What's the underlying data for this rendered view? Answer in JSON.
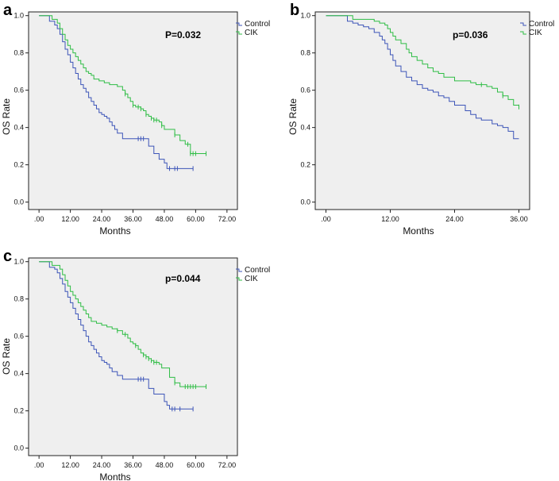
{
  "colors": {
    "control": "#3d55b8",
    "cik": "#2fbd45"
  },
  "chart_data": [
    {
      "type": "line",
      "panel": "a",
      "p_value": "P=0.032",
      "xlabel": "Months",
      "ylabel": "OS Rate",
      "xlim": [
        -4,
        76
      ],
      "ylim": [
        -0.04,
        1.02
      ],
      "xticks": [
        0,
        12,
        24,
        36,
        48,
        60,
        72
      ],
      "xtick_labels": [
        ".00",
        "12.00",
        "24.00",
        "36.00",
        "48.00",
        "60.00",
        "72.00"
      ],
      "yticks": [
        0,
        0.2,
        0.4,
        0.6,
        0.8,
        1.0
      ],
      "ytick_labels": [
        "0.0",
        "0.2",
        "0.4",
        "0.6",
        "0.8",
        "1.0"
      ],
      "legend": [
        "Control",
        "CIK"
      ],
      "series": [
        {
          "name": "Control",
          "x": [
            0,
            4,
            6,
            7,
            8,
            9,
            10,
            11,
            12,
            13,
            14,
            15,
            16,
            17,
            18,
            19,
            20,
            21,
            22,
            23,
            24,
            25,
            26,
            27,
            28,
            29,
            30,
            32,
            33,
            40,
            42,
            44,
            46,
            48,
            49,
            59
          ],
          "y": [
            1.0,
            0.97,
            0.95,
            0.93,
            0.9,
            0.86,
            0.82,
            0.79,
            0.75,
            0.72,
            0.69,
            0.66,
            0.63,
            0.61,
            0.59,
            0.56,
            0.54,
            0.52,
            0.5,
            0.48,
            0.47,
            0.46,
            0.45,
            0.43,
            0.41,
            0.39,
            0.37,
            0.34,
            0.34,
            0.34,
            0.3,
            0.26,
            0.23,
            0.21,
            0.18,
            0.18
          ],
          "censored_x": [
            38,
            39,
            40,
            50,
            52,
            53,
            59
          ]
        },
        {
          "name": "CIK",
          "x": [
            0,
            5,
            7,
            8,
            9,
            10,
            11,
            12,
            13,
            14,
            15,
            16,
            17,
            18,
            19,
            20,
            21,
            23,
            25,
            27,
            30,
            32,
            33,
            34,
            35,
            36,
            37,
            38,
            39,
            40,
            41,
            42,
            43,
            44,
            46,
            47,
            48,
            50,
            52,
            54,
            56,
            58,
            64
          ],
          "y": [
            1.0,
            0.98,
            0.96,
            0.93,
            0.9,
            0.87,
            0.84,
            0.82,
            0.8,
            0.78,
            0.76,
            0.74,
            0.72,
            0.7,
            0.69,
            0.68,
            0.66,
            0.65,
            0.64,
            0.63,
            0.62,
            0.6,
            0.58,
            0.56,
            0.54,
            0.52,
            0.51,
            0.51,
            0.5,
            0.49,
            0.47,
            0.46,
            0.45,
            0.44,
            0.43,
            0.41,
            0.39,
            0.39,
            0.36,
            0.33,
            0.31,
            0.26,
            0.26
          ],
          "censored_x": [
            33,
            36,
            38,
            39,
            41,
            43,
            44,
            45,
            47,
            52,
            57,
            58,
            59,
            60,
            64
          ]
        }
      ]
    },
    {
      "type": "line",
      "panel": "b",
      "p_value": "p=0.036",
      "xlabel": "Months",
      "ylabel": "OS Rate",
      "xlim": [
        -2,
        38
      ],
      "ylim": [
        -0.04,
        1.02
      ],
      "xticks": [
        0,
        12,
        24,
        36
      ],
      "xtick_labels": [
        ".00",
        "12.00",
        "24.00",
        "36.00"
      ],
      "yticks": [
        0,
        0.2,
        0.4,
        0.6,
        0.8,
        1.0
      ],
      "ytick_labels": [
        "0.0",
        "0.2",
        "0.4",
        "0.6",
        "0.8",
        "1.0"
      ],
      "legend": [
        "Control",
        "CIK"
      ],
      "series": [
        {
          "name": "Control",
          "x": [
            0,
            4,
            5,
            6,
            7,
            8,
            9,
            10,
            10.5,
            11,
            11.5,
            12,
            12.5,
            13,
            14,
            15,
            16,
            17,
            18,
            19,
            20,
            21,
            22,
            23,
            24,
            26,
            27,
            28,
            29,
            31,
            32,
            33,
            34,
            35,
            36
          ],
          "y": [
            1.0,
            0.97,
            0.96,
            0.95,
            0.94,
            0.93,
            0.91,
            0.89,
            0.87,
            0.85,
            0.82,
            0.79,
            0.76,
            0.73,
            0.7,
            0.67,
            0.65,
            0.63,
            0.61,
            0.6,
            0.59,
            0.57,
            0.56,
            0.54,
            0.52,
            0.49,
            0.47,
            0.45,
            0.44,
            0.42,
            0.41,
            0.4,
            0.38,
            0.34,
            0.34
          ]
        },
        {
          "name": "CIK",
          "x": [
            0,
            5,
            9,
            10,
            11,
            11.5,
            12,
            12.5,
            13,
            14,
            15,
            15.5,
            16,
            17,
            18,
            19,
            20,
            21,
            22,
            24,
            27,
            28,
            30,
            31,
            32,
            33,
            34,
            35,
            36
          ],
          "y": [
            1.0,
            0.98,
            0.97,
            0.96,
            0.95,
            0.93,
            0.91,
            0.89,
            0.87,
            0.85,
            0.82,
            0.8,
            0.78,
            0.76,
            0.74,
            0.72,
            0.7,
            0.69,
            0.67,
            0.65,
            0.64,
            0.63,
            0.62,
            0.61,
            0.59,
            0.57,
            0.55,
            0.52,
            0.51
          ],
          "censored_x": [
            29,
            33,
            36
          ]
        }
      ]
    },
    {
      "type": "line",
      "panel": "c",
      "p_value": "p=0.044",
      "xlabel": "Months",
      "ylabel": "OS Rate",
      "xlim": [
        -4,
        76
      ],
      "ylim": [
        -0.04,
        1.02
      ],
      "xticks": [
        0,
        12,
        24,
        36,
        48,
        60,
        72
      ],
      "xtick_labels": [
        ".00",
        "12.00",
        "24.00",
        "36.00",
        "48.00",
        "60.00",
        "72.00"
      ],
      "yticks": [
        0,
        0.2,
        0.4,
        0.6,
        0.8,
        1.0
      ],
      "ytick_labels": [
        "0.0",
        "0.2",
        "0.4",
        "0.6",
        "0.8",
        "1.0"
      ],
      "legend": [
        "Control",
        "CIK"
      ],
      "series": [
        {
          "name": "Control",
          "x": [
            0,
            4,
            6,
            7,
            8,
            9,
            10,
            11,
            12,
            13,
            14,
            15,
            16,
            17,
            18,
            19,
            20,
            21,
            22,
            23,
            24,
            25,
            26,
            27,
            28,
            30,
            32,
            38,
            40,
            42,
            44,
            48,
            49,
            50,
            59
          ],
          "y": [
            1.0,
            0.97,
            0.96,
            0.94,
            0.91,
            0.88,
            0.84,
            0.81,
            0.78,
            0.75,
            0.72,
            0.69,
            0.66,
            0.63,
            0.6,
            0.57,
            0.55,
            0.53,
            0.51,
            0.49,
            0.47,
            0.46,
            0.45,
            0.43,
            0.41,
            0.39,
            0.37,
            0.37,
            0.37,
            0.32,
            0.29,
            0.25,
            0.23,
            0.21,
            0.21
          ],
          "censored_x": [
            38,
            39,
            40,
            51,
            52,
            54,
            59
          ]
        },
        {
          "name": "CIK",
          "x": [
            0,
            5,
            8,
            9,
            10,
            11,
            12,
            13,
            14,
            15,
            16,
            17,
            18,
            19,
            20,
            22,
            24,
            26,
            28,
            30,
            32,
            34,
            35,
            36,
            37,
            38,
            39,
            40,
            41,
            42,
            43,
            44,
            46,
            47,
            50,
            52,
            54,
            64
          ],
          "y": [
            1.0,
            0.98,
            0.96,
            0.93,
            0.9,
            0.87,
            0.84,
            0.82,
            0.8,
            0.78,
            0.76,
            0.74,
            0.72,
            0.7,
            0.68,
            0.67,
            0.66,
            0.65,
            0.64,
            0.63,
            0.61,
            0.59,
            0.57,
            0.56,
            0.55,
            0.53,
            0.51,
            0.5,
            0.49,
            0.48,
            0.47,
            0.46,
            0.45,
            0.43,
            0.38,
            0.35,
            0.33,
            0.33
          ],
          "censored_x": [
            30,
            33,
            37,
            40,
            41,
            42,
            43,
            44,
            45,
            52,
            56,
            57,
            58,
            59,
            60,
            64
          ]
        }
      ]
    }
  ]
}
